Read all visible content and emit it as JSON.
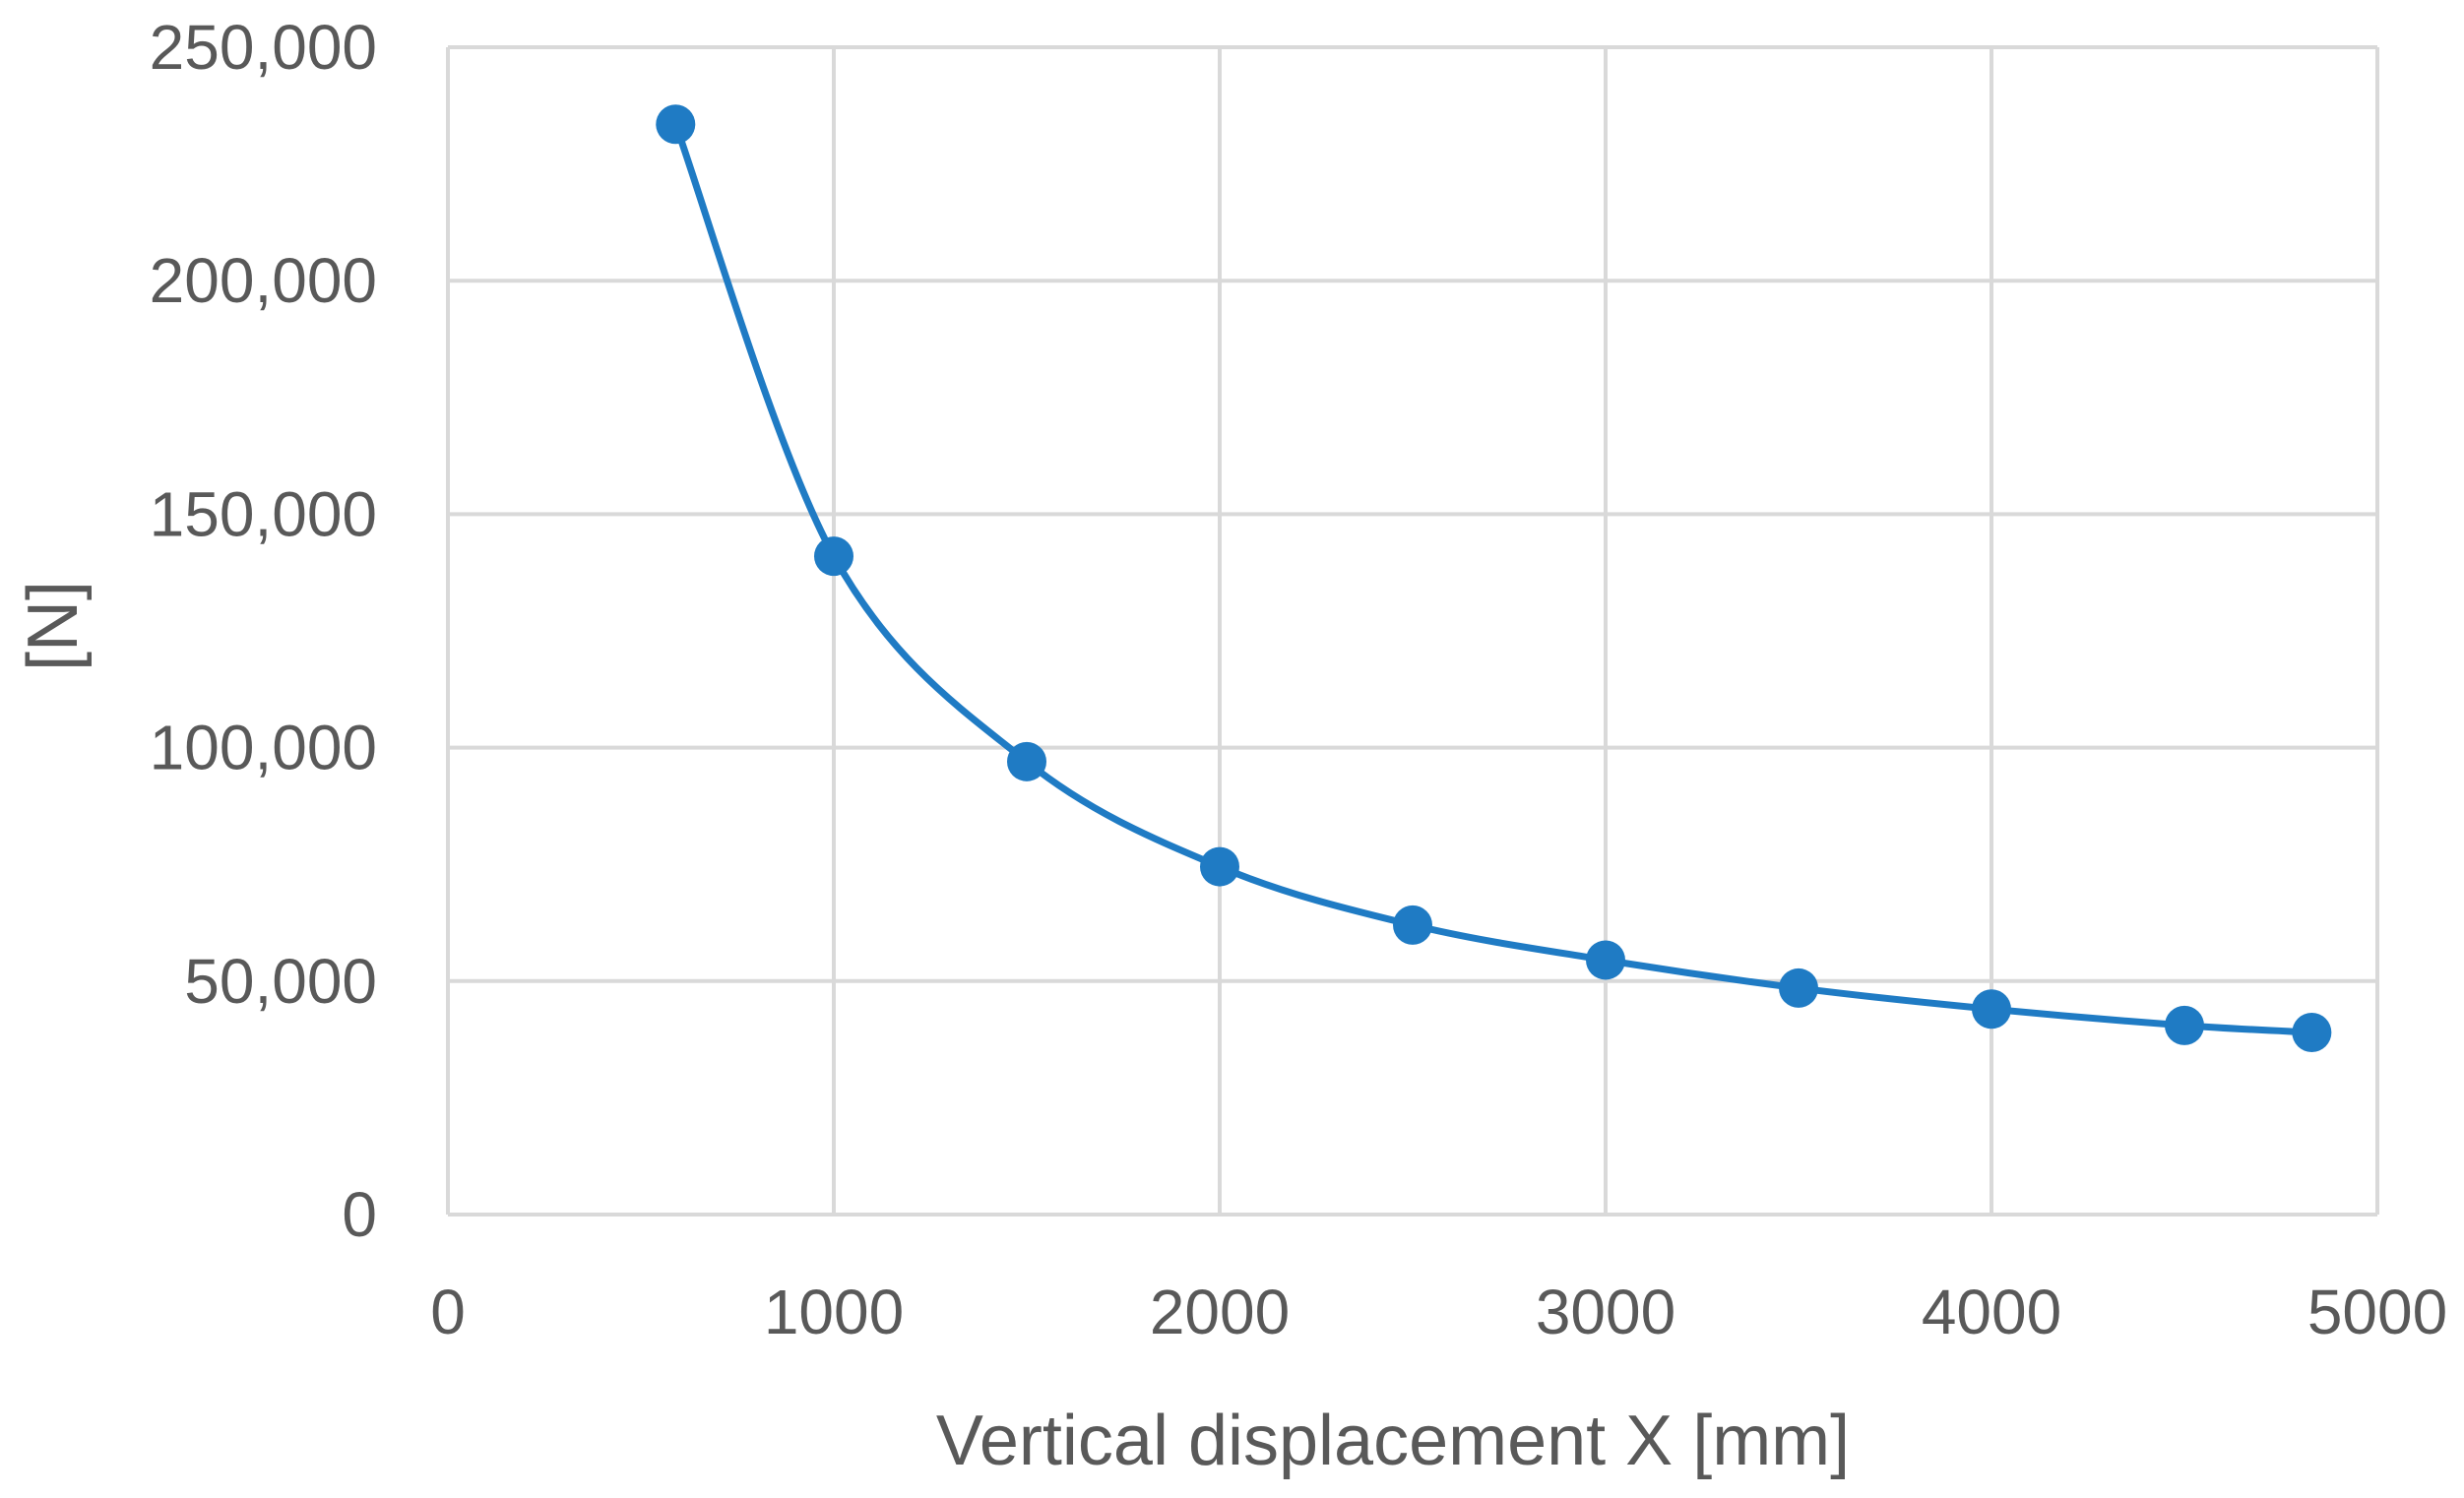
{
  "chart_data": {
    "type": "scatter",
    "title": "",
    "xlabel": "Vertical displacement X [mm]",
    "ylabel": "[N]",
    "xlim": [
      0,
      5000
    ],
    "ylim": [
      0,
      250000
    ],
    "x_ticks": [
      0,
      1000,
      2000,
      3000,
      4000,
      5000
    ],
    "x_tick_labels": [
      "0",
      "1000",
      "2000",
      "3000",
      "4000",
      "5000"
    ],
    "y_ticks": [
      0,
      50000,
      100000,
      150000,
      200000,
      250000
    ],
    "y_tick_labels": [
      "0",
      "50,000",
      "100,000",
      "150,000",
      "200,000",
      "250,000"
    ],
    "grid": true,
    "legend": "none",
    "smooth_line": true,
    "series": [
      {
        "color": "#1f7bc4",
        "x": [
          590,
          1000,
          1500,
          2000,
          2500,
          3000,
          3500,
          4000,
          4500,
          4830
        ],
        "y": [
          233500,
          141000,
          97000,
          74500,
          62000,
          54500,
          48500,
          44000,
          40500,
          39000
        ]
      }
    ]
  }
}
